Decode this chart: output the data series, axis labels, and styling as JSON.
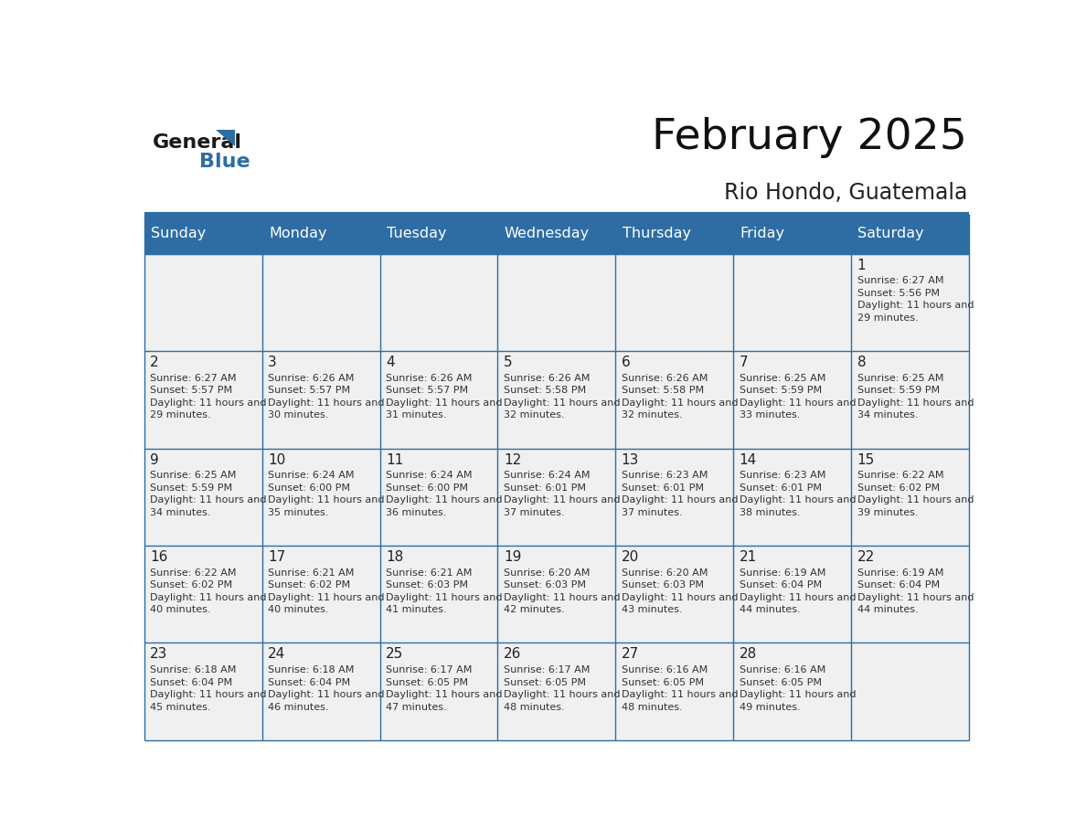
{
  "title": "February 2025",
  "subtitle": "Rio Hondo, Guatemala",
  "header_bg": "#2E6DA4",
  "header_text": "#FFFFFF",
  "cell_bg_light": "#F0F0F0",
  "border_color": "#2E6DA4",
  "day_names": [
    "Sunday",
    "Monday",
    "Tuesday",
    "Wednesday",
    "Thursday",
    "Friday",
    "Saturday"
  ],
  "days": [
    {
      "day": 1,
      "col": 6,
      "row": 0,
      "sunrise": "6:27 AM",
      "sunset": "5:56 PM",
      "daylight": "11 hours and 29 minutes."
    },
    {
      "day": 2,
      "col": 0,
      "row": 1,
      "sunrise": "6:27 AM",
      "sunset": "5:57 PM",
      "daylight": "11 hours and 29 minutes."
    },
    {
      "day": 3,
      "col": 1,
      "row": 1,
      "sunrise": "6:26 AM",
      "sunset": "5:57 PM",
      "daylight": "11 hours and 30 minutes."
    },
    {
      "day": 4,
      "col": 2,
      "row": 1,
      "sunrise": "6:26 AM",
      "sunset": "5:57 PM",
      "daylight": "11 hours and 31 minutes."
    },
    {
      "day": 5,
      "col": 3,
      "row": 1,
      "sunrise": "6:26 AM",
      "sunset": "5:58 PM",
      "daylight": "11 hours and 32 minutes."
    },
    {
      "day": 6,
      "col": 4,
      "row": 1,
      "sunrise": "6:26 AM",
      "sunset": "5:58 PM",
      "daylight": "11 hours and 32 minutes."
    },
    {
      "day": 7,
      "col": 5,
      "row": 1,
      "sunrise": "6:25 AM",
      "sunset": "5:59 PM",
      "daylight": "11 hours and 33 minutes."
    },
    {
      "day": 8,
      "col": 6,
      "row": 1,
      "sunrise": "6:25 AM",
      "sunset": "5:59 PM",
      "daylight": "11 hours and 34 minutes."
    },
    {
      "day": 9,
      "col": 0,
      "row": 2,
      "sunrise": "6:25 AM",
      "sunset": "5:59 PM",
      "daylight": "11 hours and 34 minutes."
    },
    {
      "day": 10,
      "col": 1,
      "row": 2,
      "sunrise": "6:24 AM",
      "sunset": "6:00 PM",
      "daylight": "11 hours and 35 minutes."
    },
    {
      "day": 11,
      "col": 2,
      "row": 2,
      "sunrise": "6:24 AM",
      "sunset": "6:00 PM",
      "daylight": "11 hours and 36 minutes."
    },
    {
      "day": 12,
      "col": 3,
      "row": 2,
      "sunrise": "6:24 AM",
      "sunset": "6:01 PM",
      "daylight": "11 hours and 37 minutes."
    },
    {
      "day": 13,
      "col": 4,
      "row": 2,
      "sunrise": "6:23 AM",
      "sunset": "6:01 PM",
      "daylight": "11 hours and 37 minutes."
    },
    {
      "day": 14,
      "col": 5,
      "row": 2,
      "sunrise": "6:23 AM",
      "sunset": "6:01 PM",
      "daylight": "11 hours and 38 minutes."
    },
    {
      "day": 15,
      "col": 6,
      "row": 2,
      "sunrise": "6:22 AM",
      "sunset": "6:02 PM",
      "daylight": "11 hours and 39 minutes."
    },
    {
      "day": 16,
      "col": 0,
      "row": 3,
      "sunrise": "6:22 AM",
      "sunset": "6:02 PM",
      "daylight": "11 hours and 40 minutes."
    },
    {
      "day": 17,
      "col": 1,
      "row": 3,
      "sunrise": "6:21 AM",
      "sunset": "6:02 PM",
      "daylight": "11 hours and 40 minutes."
    },
    {
      "day": 18,
      "col": 2,
      "row": 3,
      "sunrise": "6:21 AM",
      "sunset": "6:03 PM",
      "daylight": "11 hours and 41 minutes."
    },
    {
      "day": 19,
      "col": 3,
      "row": 3,
      "sunrise": "6:20 AM",
      "sunset": "6:03 PM",
      "daylight": "11 hours and 42 minutes."
    },
    {
      "day": 20,
      "col": 4,
      "row": 3,
      "sunrise": "6:20 AM",
      "sunset": "6:03 PM",
      "daylight": "11 hours and 43 minutes."
    },
    {
      "day": 21,
      "col": 5,
      "row": 3,
      "sunrise": "6:19 AM",
      "sunset": "6:04 PM",
      "daylight": "11 hours and 44 minutes."
    },
    {
      "day": 22,
      "col": 6,
      "row": 3,
      "sunrise": "6:19 AM",
      "sunset": "6:04 PM",
      "daylight": "11 hours and 44 minutes."
    },
    {
      "day": 23,
      "col": 0,
      "row": 4,
      "sunrise": "6:18 AM",
      "sunset": "6:04 PM",
      "daylight": "11 hours and 45 minutes."
    },
    {
      "day": 24,
      "col": 1,
      "row": 4,
      "sunrise": "6:18 AM",
      "sunset": "6:04 PM",
      "daylight": "11 hours and 46 minutes."
    },
    {
      "day": 25,
      "col": 2,
      "row": 4,
      "sunrise": "6:17 AM",
      "sunset": "6:05 PM",
      "daylight": "11 hours and 47 minutes."
    },
    {
      "day": 26,
      "col": 3,
      "row": 4,
      "sunrise": "6:17 AM",
      "sunset": "6:05 PM",
      "daylight": "11 hours and 48 minutes."
    },
    {
      "day": 27,
      "col": 4,
      "row": 4,
      "sunrise": "6:16 AM",
      "sunset": "6:05 PM",
      "daylight": "11 hours and 48 minutes."
    },
    {
      "day": 28,
      "col": 5,
      "row": 4,
      "sunrise": "6:16 AM",
      "sunset": "6:05 PM",
      "daylight": "11 hours and 49 minutes."
    }
  ],
  "num_rows": 5,
  "text_color_dark": "#222222",
  "text_color_info": "#333333",
  "logo_text1": "General",
  "logo_text2": "Blue",
  "logo_color1": "#1a1a1a",
  "logo_color2": "#2E6DA4",
  "logo_triangle_color": "#2E6DA4"
}
